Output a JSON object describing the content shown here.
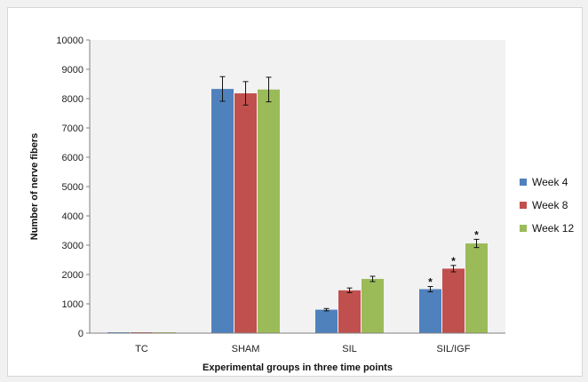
{
  "chart_data": {
    "type": "bar",
    "title": "",
    "xlabel": "Experimental groups in three time points",
    "ylabel": "Number of nerve fibers",
    "ylim": [
      0,
      10000
    ],
    "yticks": [
      0,
      1000,
      2000,
      3000,
      4000,
      5000,
      6000,
      7000,
      8000,
      9000,
      10000
    ],
    "categories": [
      "TC",
      "SHAM",
      "SIL",
      "SIL/IGF"
    ],
    "series": [
      {
        "name": "Week 4",
        "color": "#4f81bd",
        "values": [
          30,
          8330,
          800,
          1500
        ],
        "errors": [
          0,
          420,
          40,
          90
        ]
      },
      {
        "name": "Week 8",
        "color": "#c0504d",
        "values": [
          30,
          8180,
          1460,
          2200
        ],
        "errors": [
          0,
          400,
          80,
          110
        ]
      },
      {
        "name": "Week 12",
        "color": "#9bbb59",
        "values": [
          30,
          8310,
          1850,
          3060
        ],
        "errors": [
          0,
          420,
          90,
          140
        ]
      }
    ],
    "annotations": [
      {
        "category": "SIL/IGF",
        "series": "Week 4",
        "text": "*"
      },
      {
        "category": "SIL/IGF",
        "series": "Week 8",
        "text": "*"
      },
      {
        "category": "SIL/IGF",
        "series": "Week 12",
        "text": "*"
      }
    ],
    "grid": false,
    "legend": "right"
  }
}
